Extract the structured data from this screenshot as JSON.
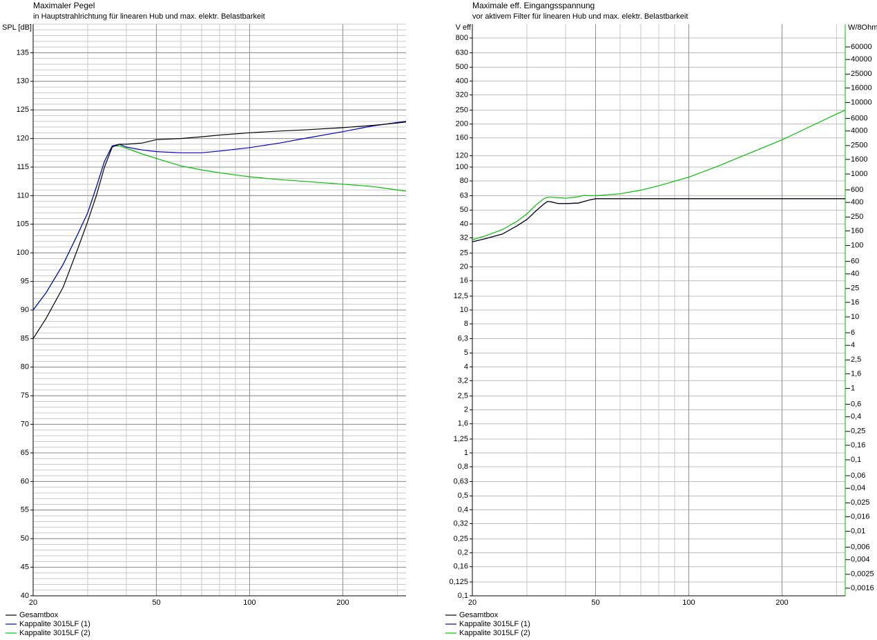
{
  "chart_data": [
    {
      "type": "line",
      "title": "Maximaler Pegel",
      "subtitle": "in Hauptstrahlrichtung für linearen Hub und max. elektr. Belastbarkeit",
      "ylabel": "SPL [dB]",
      "xlog": true,
      "ylog": false,
      "xlim": [
        20,
        320
      ],
      "ylim": [
        40,
        140
      ],
      "xticks": [
        20,
        50,
        100,
        200
      ],
      "x_minor_grid": [
        30,
        40,
        60,
        70,
        80,
        90,
        300
      ],
      "yticks": [
        40,
        45,
        50,
        55,
        60,
        65,
        70,
        75,
        80,
        85,
        90,
        95,
        100,
        105,
        110,
        115,
        120,
        125,
        130,
        135
      ],
      "y_minor_step": 1,
      "grid": true,
      "x": [
        20,
        22,
        25,
        28,
        30,
        32,
        34,
        36,
        38,
        40,
        45,
        50,
        60,
        70,
        80,
        100,
        125,
        150,
        200,
        250,
        300,
        320
      ],
      "series": [
        {
          "name": "Gesamtbox",
          "color": "#000000",
          "values": [
            85,
            88.5,
            94,
            101,
            105.5,
            110,
            115,
            118.5,
            119,
            119,
            119.2,
            119.8,
            120,
            120.3,
            120.6,
            121,
            121.3,
            121.5,
            121.9,
            122.3,
            122.7,
            122.9
          ]
        },
        {
          "name": "Kappalite 3015LF (1)",
          "color": "#0000c8",
          "values": [
            90,
            93,
            98,
            103.5,
            107,
            111.5,
            116,
            118.7,
            119,
            118.5,
            118,
            117.7,
            117.5,
            117.5,
            117.8,
            118.4,
            119.2,
            120,
            121.2,
            122.2,
            122.8,
            123
          ]
        },
        {
          "name": "Kappalite 3015LF (2)",
          "color": "#00c000",
          "values": [
            90,
            93,
            98,
            103.5,
            107,
            111.5,
            116,
            118.7,
            118.7,
            118.3,
            117.3,
            116.5,
            115.2,
            114.5,
            114,
            113.3,
            112.8,
            112.5,
            112,
            111.6,
            111,
            110.8
          ]
        }
      ]
    },
    {
      "type": "line",
      "title": "Maximale eff. Eingangsspannung",
      "subtitle": "vor aktivem Filter für linearen Hub und max. elektr. Belastbarkeit",
      "ylabel": "V eff",
      "y2label": "W/8Ohm",
      "xlog": true,
      "ylog": true,
      "y2log": true,
      "xlim": [
        20,
        320
      ],
      "ylim": [
        0.1,
        1000
      ],
      "y2lim": [
        0.00125,
        125000
      ],
      "xticks": [
        20,
        50,
        100,
        200
      ],
      "x_minor_grid": [
        30,
        40,
        60,
        70,
        80,
        90,
        300
      ],
      "yticks": [
        {
          "value": 0.1,
          "label": "0,1"
        },
        {
          "value": 0.125,
          "label": "0,125"
        },
        {
          "value": 0.16,
          "label": "0,16"
        },
        {
          "value": 0.2,
          "label": "0,2"
        },
        {
          "value": 0.25,
          "label": "0,25"
        },
        {
          "value": 0.32,
          "label": "0,32"
        },
        {
          "value": 0.4,
          "label": "0,4"
        },
        {
          "value": 0.5,
          "label": "0,5"
        },
        {
          "value": 0.63,
          "label": "0,63"
        },
        {
          "value": 0.8,
          "label": "0,8"
        },
        1,
        {
          "value": 1.25,
          "label": "1,25"
        },
        {
          "value": 1.6,
          "label": "1,6"
        },
        2,
        {
          "value": 2.5,
          "label": "2,5"
        },
        {
          "value": 3.2,
          "label": "3,2"
        },
        4,
        5,
        {
          "value": 6.3,
          "label": "6,3"
        },
        8,
        10,
        {
          "value": 12.5,
          "label": "12,5"
        },
        16,
        20,
        25,
        32,
        40,
        50,
        63,
        80,
        100,
        120,
        160,
        200,
        250,
        320,
        400,
        500,
        630,
        800
      ],
      "y2ticks": [
        {
          "value": 0.0016,
          "label": "0,0016"
        },
        {
          "value": 0.0025,
          "label": "0,0025"
        },
        {
          "value": 0.004,
          "label": "0,004"
        },
        {
          "value": 0.006,
          "label": "0,006"
        },
        {
          "value": 0.01,
          "label": "0,01"
        },
        {
          "value": 0.016,
          "label": "0,016"
        },
        {
          "value": 0.025,
          "label": "0,025"
        },
        {
          "value": 0.04,
          "label": "0,04"
        },
        {
          "value": 0.06,
          "label": "0,06"
        },
        {
          "value": 0.1,
          "label": "0,1"
        },
        {
          "value": 0.16,
          "label": "0,16"
        },
        {
          "value": 0.25,
          "label": "0,25"
        },
        {
          "value": 0.4,
          "label": "0,4"
        },
        {
          "value": 0.6,
          "label": "0,6"
        },
        1,
        {
          "value": 1.6,
          "label": "1,6"
        },
        {
          "value": 2.5,
          "label": "2,5"
        },
        4,
        6,
        10,
        16,
        25,
        40,
        60,
        100,
        160,
        250,
        400,
        600,
        1000,
        1600,
        2500,
        4000,
        6000,
        10000,
        16000,
        25000,
        40000,
        60000
      ],
      "grid": true,
      "x": [
        20,
        22,
        25,
        28,
        30,
        32,
        34,
        35,
        36,
        38,
        40,
        44,
        46,
        48,
        50,
        60,
        70,
        80,
        100,
        125,
        150,
        200,
        250,
        300,
        320
      ],
      "series": [
        {
          "name": "Gesamtbox",
          "color": "#000000",
          "values": [
            30,
            31.5,
            34,
            39,
            43,
            49,
            55,
            57.5,
            57,
            55.5,
            55.5,
            56,
            57.5,
            59,
            60,
            60,
            60,
            60,
            60,
            60,
            60,
            60,
            60,
            60,
            60
          ]
        },
        {
          "name": "Kappalite 3015LF (1)",
          "color": "#0000c8",
          "values": [
            30,
            31.5,
            34,
            39,
            43,
            49,
            55,
            57.5,
            57,
            55.5,
            55.5,
            56,
            57.5,
            59,
            60,
            60,
            60,
            60,
            60,
            60,
            60,
            60,
            60,
            60,
            60
          ]
        },
        {
          "name": "Kappalite 3015LF (2)",
          "color": "#00c000",
          "values": [
            31,
            33,
            36.5,
            42,
            47,
            54,
            60,
            61.5,
            61.5,
            61,
            60.5,
            62,
            63.5,
            63,
            63,
            65,
            69,
            74,
            85,
            102,
            120,
            155,
            195,
            235,
            250
          ]
        }
      ]
    }
  ]
}
